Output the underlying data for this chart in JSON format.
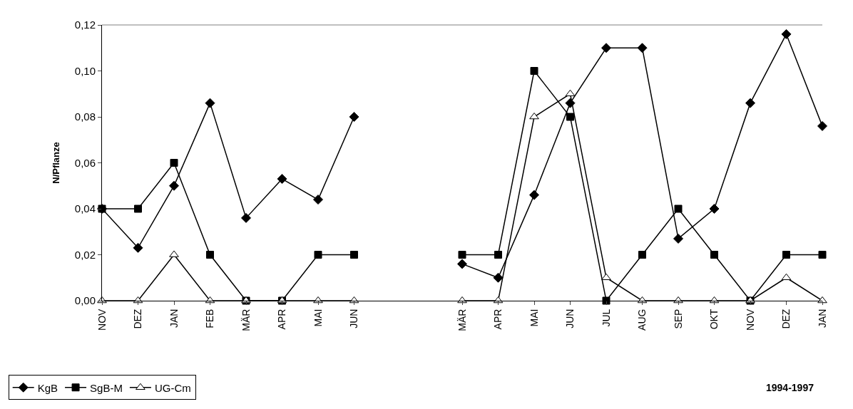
{
  "chart_data": {
    "type": "line",
    "ylabel": "N/Pflanze",
    "annotations": [
      "1994-1997"
    ],
    "categories": [
      "NOV",
      "DEZ",
      "JAN",
      "FEB",
      "MÄR",
      "APR",
      "MAI",
      "JUN",
      null,
      null,
      "MÄR",
      "APR",
      "MAI",
      "JUN",
      "JUL",
      "AUG",
      "SEP",
      "OKT",
      "NOV",
      "DEZ",
      "JAN"
    ],
    "series": [
      {
        "name": "KgB",
        "color": "#000000",
        "marker": "diamond",
        "values": [
          0.04,
          0.023,
          0.05,
          0.086,
          0.036,
          0.053,
          0.044,
          0.08,
          null,
          null,
          0.016,
          0.01,
          0.046,
          0.086,
          0.11,
          0.11,
          0.027,
          0.04,
          0.086,
          0.116,
          0.076
        ]
      },
      {
        "name": "SgB-M",
        "color": "#000000",
        "marker": "square",
        "values": [
          0.04,
          0.04,
          0.06,
          0.02,
          0,
          0,
          0.02,
          0.02,
          null,
          null,
          0.02,
          0.02,
          0.1,
          0.08,
          0,
          0.02,
          0.04,
          0.02,
          0,
          0.02,
          0.02
        ]
      },
      {
        "name": "UG-Cm",
        "color": "#000000",
        "marker": "triangle",
        "values": [
          0,
          0,
          0.02,
          0,
          0,
          0,
          0,
          0,
          null,
          null,
          0,
          0,
          0.08,
          0.09,
          0.01,
          0,
          0,
          0,
          0,
          0.01,
          0
        ]
      }
    ],
    "ylim": [
      0,
      0.12
    ],
    "yticks": [
      {
        "value": 0,
        "label": "0,00"
      },
      {
        "value": 0.02,
        "label": "0,02"
      },
      {
        "value": 0.04,
        "label": "0,04"
      },
      {
        "value": 0.06,
        "label": "0,06"
      },
      {
        "value": 0.08,
        "label": "0,08"
      },
      {
        "value": 0.1,
        "label": "0,10"
      },
      {
        "value": 0.12,
        "label": "0,12"
      }
    ],
    "legend": "bottom left",
    "line_style": "solid"
  }
}
